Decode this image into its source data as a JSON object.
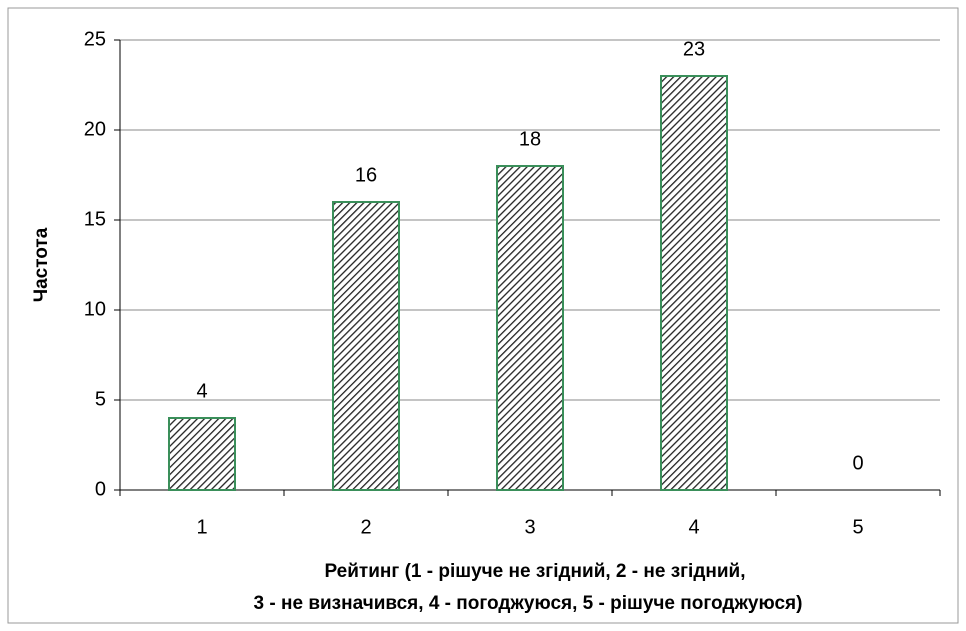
{
  "chart_data": {
    "type": "bar",
    "categories": [
      "1",
      "2",
      "3",
      "4",
      "5"
    ],
    "values": [
      4,
      16,
      18,
      23,
      0
    ],
    "color": "#3a8f5a",
    "ylabel": "Частота",
    "xlabel": [
      "Рейтинг (1 - рішуче не згідний, 2 - не згідний,",
      "3 - не визначився, 4 - погоджуюся, 5 - рішуче погоджуюся)"
    ],
    "ylim": [
      0,
      25
    ],
    "yticks": [
      0,
      5,
      10,
      15,
      20,
      25
    ],
    "grid": true
  }
}
